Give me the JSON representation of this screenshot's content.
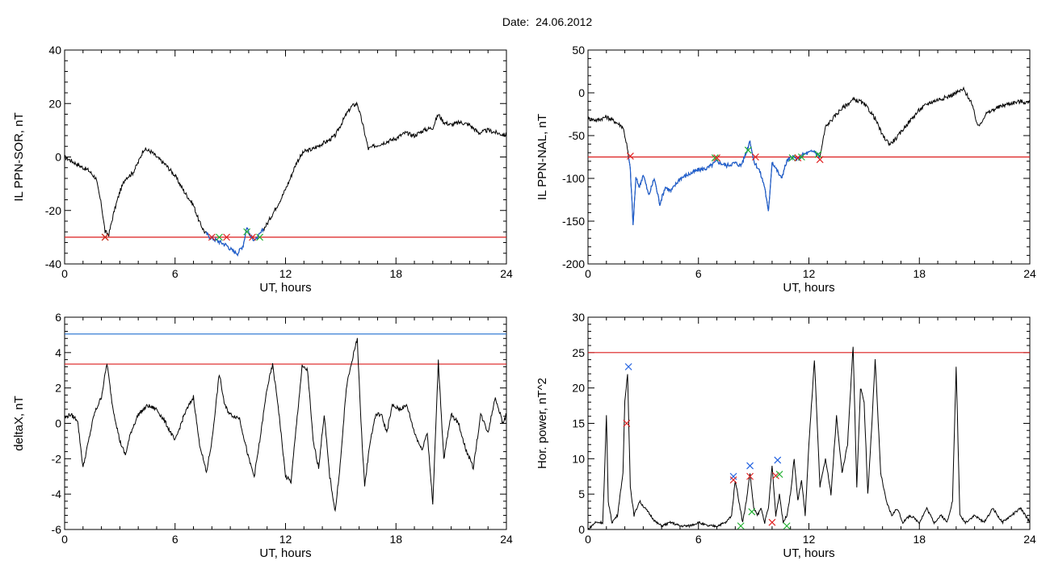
{
  "page": {
    "title": "Date:  24.06.2012"
  },
  "colors": {
    "axis": "#000000",
    "trace": "#000000",
    "threshold_red": "#dc1c1c",
    "threshold_blue": "#1f6fcf",
    "highlight_blue": "#1f5fd0",
    "marker_red": "#e02020",
    "marker_green": "#20b030",
    "marker_blue": "#2060e0"
  },
  "chart_data": [
    {
      "id": "p1",
      "type": "line",
      "xlabel": "UT, hours",
      "ylabel": "IL PPN-SOR, nT",
      "xlim": [
        0,
        24
      ],
      "ylim": [
        -40,
        40
      ],
      "xticks": [
        0,
        6,
        12,
        18,
        24
      ],
      "yticks": [
        -40,
        -20,
        0,
        20,
        40
      ],
      "series": [
        {
          "x": [
            0,
            0.5,
            1,
            1.3,
            1.7,
            2,
            2.2,
            2.4,
            2.7,
            3,
            3.3,
            3.7,
            4,
            4.3,
            4.7,
            5,
            5.5,
            6,
            6.5,
            7,
            7.3,
            7.6,
            7.9,
            8.2,
            8.5,
            8.8,
            9.1,
            9.4,
            9.7,
            9.9,
            10.1,
            10.4,
            10.7,
            11,
            11.4,
            11.8,
            12.2,
            12.6,
            13,
            13.5,
            14,
            14.3,
            14.7,
            15,
            15.3,
            15.6,
            15.9,
            16.2,
            16.5,
            16.8,
            17.2,
            17.6,
            18,
            18.5,
            19,
            19.5,
            20,
            20.3,
            20.6,
            21,
            21.5,
            22,
            22.5,
            23,
            23.5,
            24
          ],
          "y": [
            0,
            -2,
            -4,
            -5,
            -8,
            -18,
            -28,
            -29,
            -20,
            -13,
            -8,
            -6,
            -2,
            3,
            2,
            0,
            -3,
            -7,
            -13,
            -18,
            -24,
            -28,
            -30,
            -31,
            -32,
            -33,
            -35,
            -36,
            -33,
            -26,
            -30,
            -31,
            -28,
            -25,
            -20,
            -15,
            -9,
            -2,
            2,
            3,
            5,
            6,
            8,
            12,
            16,
            19,
            20,
            12,
            3,
            4,
            5,
            6,
            7,
            9,
            8,
            10,
            11,
            16,
            13,
            12,
            13,
            12,
            9,
            10,
            9,
            8
          ]
        }
      ],
      "highlight": {
        "x_from": 7.7,
        "x_to": 10.8,
        "color": "#1f5fd0"
      },
      "threshold_lines": [
        {
          "y": -30,
          "color": "#dc1c1c"
        }
      ],
      "markers": [
        {
          "x": 2.2,
          "y": -30,
          "color": "#20b030"
        },
        {
          "x": 2.2,
          "y": -30,
          "color": "#e02020"
        },
        {
          "x": 8.0,
          "y": -30,
          "color": "#e02020"
        },
        {
          "x": 8.4,
          "y": -30,
          "color": "#20b030"
        },
        {
          "x": 8.8,
          "y": -30,
          "color": "#e02020"
        },
        {
          "x": 9.9,
          "y": -28,
          "color": "#20b030"
        },
        {
          "x": 10.2,
          "y": -30,
          "color": "#e02020"
        },
        {
          "x": 10.6,
          "y": -30,
          "color": "#20b030"
        }
      ]
    },
    {
      "id": "p2",
      "type": "line",
      "xlabel": "UT, hours",
      "ylabel": "IL PPN-NAL, nT",
      "xlim": [
        0,
        24
      ],
      "ylim": [
        -200,
        50
      ],
      "xticks": [
        0,
        6,
        12,
        18,
        24
      ],
      "yticks": [
        -200,
        -150,
        -100,
        -50,
        0,
        50
      ],
      "series": [
        {
          "x": [
            0,
            0.5,
            1,
            1.5,
            1.9,
            2.1,
            2.3,
            2.45,
            2.6,
            2.8,
            3,
            3.3,
            3.6,
            3.9,
            4.2,
            4.5,
            5,
            5.5,
            6,
            6.5,
            7,
            7.5,
            8,
            8.3,
            8.6,
            8.8,
            9,
            9.3,
            9.6,
            9.8,
            10,
            10.2,
            10.5,
            10.8,
            11.1,
            11.4,
            11.7,
            12,
            12.3,
            12.6,
            12.9,
            13.3,
            13.7,
            14,
            14.4,
            14.8,
            15.2,
            15.6,
            16,
            16.4,
            16.8,
            17.2,
            17.6,
            18,
            18.5,
            19,
            19.5,
            20,
            20.4,
            20.8,
            21.2,
            21.6,
            22,
            22.5,
            23,
            23.5,
            24
          ],
          "y": [
            -30,
            -32,
            -28,
            -34,
            -40,
            -60,
            -90,
            -155,
            -100,
            -110,
            -95,
            -120,
            -100,
            -130,
            -110,
            -115,
            -100,
            -95,
            -90,
            -88,
            -80,
            -85,
            -82,
            -85,
            -70,
            -55,
            -80,
            -90,
            -110,
            -140,
            -80,
            -88,
            -100,
            -80,
            -75,
            -78,
            -72,
            -70,
            -68,
            -75,
            -40,
            -30,
            -20,
            -15,
            -8,
            -10,
            -18,
            -30,
            -50,
            -60,
            -52,
            -40,
            -30,
            -20,
            -12,
            -8,
            -5,
            0,
            4,
            -10,
            -40,
            -25,
            -20,
            -15,
            -12,
            -10,
            -12
          ]
        }
      ],
      "highlight": {
        "x_from": 2.2,
        "x_to": 12.6,
        "color": "#1f5fd0"
      },
      "threshold_lines": [
        {
          "y": -75,
          "color": "#dc1c1c"
        }
      ],
      "markers": [
        {
          "x": 2.3,
          "y": -74,
          "color": "#e02020"
        },
        {
          "x": 6.9,
          "y": -76,
          "color": "#20b030"
        },
        {
          "x": 7.0,
          "y": -76,
          "color": "#e02020"
        },
        {
          "x": 8.7,
          "y": -67,
          "color": "#20b030"
        },
        {
          "x": 9.1,
          "y": -75,
          "color": "#e02020"
        },
        {
          "x": 11.1,
          "y": -76,
          "color": "#20b030"
        },
        {
          "x": 11.4,
          "y": -76,
          "color": "#e02020"
        },
        {
          "x": 11.6,
          "y": -75,
          "color": "#20b030"
        },
        {
          "x": 12.5,
          "y": -72,
          "color": "#20b030"
        },
        {
          "x": 12.6,
          "y": -78,
          "color": "#e02020"
        }
      ]
    },
    {
      "id": "p3",
      "type": "line",
      "xlabel": "UT, hours",
      "ylabel": "deltaX, nT",
      "xlim": [
        0,
        24
      ],
      "ylim": [
        -6,
        6
      ],
      "xticks": [
        0,
        6,
        12,
        18,
        24
      ],
      "yticks": [
        -6,
        -4,
        -2,
        0,
        2,
        4,
        6
      ],
      "series": [
        {
          "x": [
            0,
            0.3,
            0.7,
            1,
            1.3,
            1.6,
            2,
            2.3,
            2.6,
            3,
            3.3,
            3.6,
            4,
            4.5,
            5,
            5.5,
            6,
            6.5,
            7,
            7.3,
            7.7,
            8,
            8.4,
            8.7,
            9,
            9.5,
            10,
            10.3,
            10.6,
            11,
            11.3,
            11.6,
            12,
            12.3,
            12.6,
            12.9,
            13.2,
            13.5,
            13.8,
            14.1,
            14.4,
            14.7,
            15,
            15.3,
            15.6,
            15.9,
            16.1,
            16.3,
            16.6,
            16.9,
            17.2,
            17.5,
            17.8,
            18.2,
            18.6,
            19,
            19.4,
            19.7,
            20,
            20.3,
            20.6,
            21,
            21.4,
            21.8,
            22.2,
            22.6,
            23,
            23.4,
            23.8,
            24
          ],
          "y": [
            0.3,
            0.5,
            0.2,
            -2.5,
            -1,
            0.5,
            1.5,
            3.4,
            1,
            -1,
            -1.8,
            -0.5,
            0.5,
            1,
            0.8,
            0,
            -1,
            0.5,
            1.5,
            -1,
            -2.8,
            -1,
            2.8,
            1,
            0.5,
            0.3,
            -2,
            -3,
            -1,
            2,
            3.3,
            1,
            -3,
            -3.3,
            0,
            3.2,
            3,
            -1,
            -2.5,
            0.5,
            -3,
            -5,
            -2,
            2,
            3.5,
            4.8,
            0,
            -3.5,
            -1,
            0.5,
            0.5,
            -0.5,
            1,
            0.8,
            1,
            -0.5,
            -1.5,
            -0.5,
            -4.6,
            3.5,
            -2,
            0.5,
            0,
            -1.5,
            -2.5,
            0.5,
            -0.5,
            1.5,
            0,
            0.5
          ]
        }
      ],
      "threshold_lines": [
        {
          "y": 5.05,
          "color": "#1f6fcf"
        },
        {
          "y": 3.35,
          "color": "#dc1c1c"
        }
      ]
    },
    {
      "id": "p4",
      "type": "line",
      "xlabel": "UT, hours",
      "ylabel": "Hor. power, nT^2",
      "xlim": [
        0,
        24
      ],
      "ylim": [
        0,
        30
      ],
      "xticks": [
        0,
        6,
        12,
        18,
        24
      ],
      "yticks": [
        0,
        5,
        10,
        15,
        20,
        25,
        30
      ],
      "series": [
        {
          "x": [
            0,
            0.4,
            0.8,
            0.9,
            1.0,
            1.1,
            1.3,
            1.6,
            1.9,
            2.0,
            2.15,
            2.3,
            2.5,
            2.8,
            3.1,
            3.4,
            3.7,
            4.0,
            4.5,
            5,
            5.5,
            6,
            6.5,
            7,
            7.5,
            7.8,
            8.0,
            8.2,
            8.4,
            8.6,
            8.8,
            9.0,
            9.2,
            9.4,
            9.6,
            9.8,
            10.0,
            10.2,
            10.4,
            10.6,
            10.8,
            11.0,
            11.2,
            11.4,
            11.6,
            11.8,
            12.0,
            12.3,
            12.6,
            12.9,
            13.2,
            13.5,
            13.8,
            14.1,
            14.4,
            14.6,
            14.8,
            15.0,
            15.2,
            15.4,
            15.6,
            15.9,
            16.2,
            16.5,
            16.8,
            17.1,
            17.5,
            18,
            18.4,
            18.8,
            19.2,
            19.5,
            19.8,
            20.0,
            20.2,
            20.5,
            21,
            21.5,
            22,
            22.5,
            23,
            23.5,
            24
          ],
          "y": [
            0,
            1,
            1,
            8,
            16,
            4,
            1,
            2,
            8,
            18,
            22,
            6,
            2,
            4,
            3,
            2,
            1,
            0.5,
            1,
            0.5,
            0.5,
            1,
            0.5,
            0.5,
            1,
            2,
            7,
            4,
            1,
            4,
            8,
            3,
            2,
            3,
            1,
            3,
            9,
            2,
            5,
            1,
            2,
            5,
            10,
            4,
            7,
            2,
            12,
            24,
            6,
            10,
            5,
            16,
            8,
            12,
            26,
            6,
            20,
            18,
            5,
            14,
            24,
            8,
            4,
            2,
            3,
            1,
            2,
            1,
            3,
            1,
            2,
            1,
            4,
            23,
            2,
            1,
            2,
            1,
            3,
            1,
            2,
            3,
            1
          ]
        }
      ],
      "threshold_lines": [
        {
          "y": 25,
          "color": "#dc1c1c"
        }
      ],
      "markers": [
        {
          "x": 2.2,
          "y": 23,
          "color": "#2060e0"
        },
        {
          "x": 2.1,
          "y": 15,
          "color": "#e02020"
        },
        {
          "x": 7.9,
          "y": 7.5,
          "color": "#2060e0"
        },
        {
          "x": 7.9,
          "y": 7.0,
          "color": "#e02020"
        },
        {
          "x": 8.8,
          "y": 9.0,
          "color": "#2060e0"
        },
        {
          "x": 8.8,
          "y": 7.5,
          "color": "#e02020"
        },
        {
          "x": 8.9,
          "y": 2.5,
          "color": "#20b030"
        },
        {
          "x": 8.3,
          "y": 0.5,
          "color": "#20b030"
        },
        {
          "x": 10.3,
          "y": 9.8,
          "color": "#2060e0"
        },
        {
          "x": 10.2,
          "y": 7.6,
          "color": "#e02020"
        },
        {
          "x": 10.4,
          "y": 7.8,
          "color": "#20b030"
        },
        {
          "x": 10.0,
          "y": 1.0,
          "color": "#e02020"
        },
        {
          "x": 10.8,
          "y": 0.5,
          "color": "#20b030"
        }
      ]
    }
  ]
}
